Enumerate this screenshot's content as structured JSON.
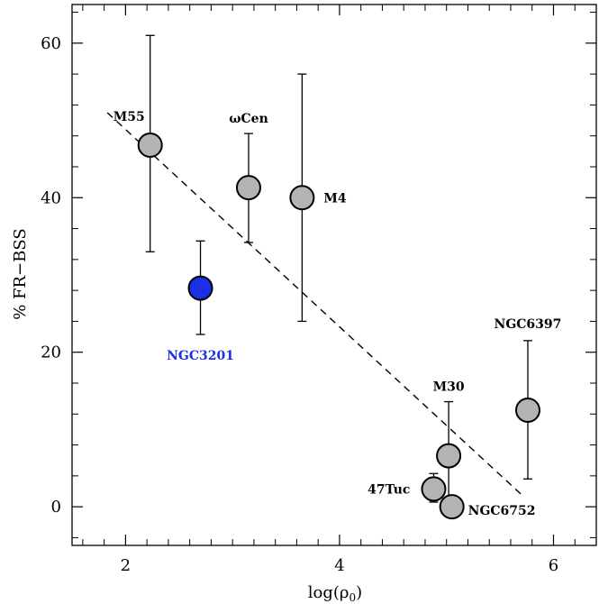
{
  "chart_data": {
    "type": "scatter",
    "xlabel": "log(ρ",
    "xlabel_sub": "0",
    "xlabel_close": ")",
    "ylabel": "% FR−BSS",
    "xlim": [
      1.5,
      6.4
    ],
    "ylim": [
      -5,
      65
    ],
    "xticks": [
      2,
      4,
      6
    ],
    "yticks": [
      0,
      20,
      40,
      60
    ],
    "grid": false,
    "colors": {
      "default_point": "#b3b3b3",
      "highlight_point": "#1a2fe6",
      "highlight_label": "#1a2fe6",
      "outline": "#000000"
    },
    "points": [
      {
        "name": "M55",
        "x": 2.23,
        "y": 46.8,
        "err_low": 33.0,
        "err_high": 61.0,
        "highlight": false,
        "label_pos": "top-left"
      },
      {
        "name": "NGC3201",
        "x": 2.7,
        "y": 28.3,
        "err_low": 22.3,
        "err_high": 34.4,
        "highlight": true,
        "label_pos": "below"
      },
      {
        "name": "ωCen",
        "x": 3.15,
        "y": 41.3,
        "err_low": 34.2,
        "err_high": 48.3,
        "highlight": false,
        "label_pos": "above"
      },
      {
        "name": "M4",
        "x": 3.65,
        "y": 40.0,
        "err_low": 24.0,
        "err_high": 56.0,
        "highlight": false,
        "label_pos": "right"
      },
      {
        "name": "M30",
        "x": 5.02,
        "y": 6.6,
        "err_low": 0.0,
        "err_high": 13.6,
        "highlight": false,
        "label_pos": "above"
      },
      {
        "name": "47Tuc",
        "x": 4.88,
        "y": 2.3,
        "err_low": 0.6,
        "err_high": 4.3,
        "highlight": false,
        "label_pos": "left"
      },
      {
        "name": "NGC6752",
        "x": 5.05,
        "y": 0.0,
        "err_low": 0.0,
        "err_high": 0.0,
        "highlight": false,
        "label_pos": "right"
      },
      {
        "name": "NGC6397",
        "x": 5.76,
        "y": 12.5,
        "err_low": 3.6,
        "err_high": 21.5,
        "highlight": false,
        "label_pos": "above"
      }
    ],
    "fit_line": {
      "x": [
        1.83,
        5.73
      ],
      "y": [
        51.0,
        1.2
      ],
      "style": "dashed"
    }
  }
}
